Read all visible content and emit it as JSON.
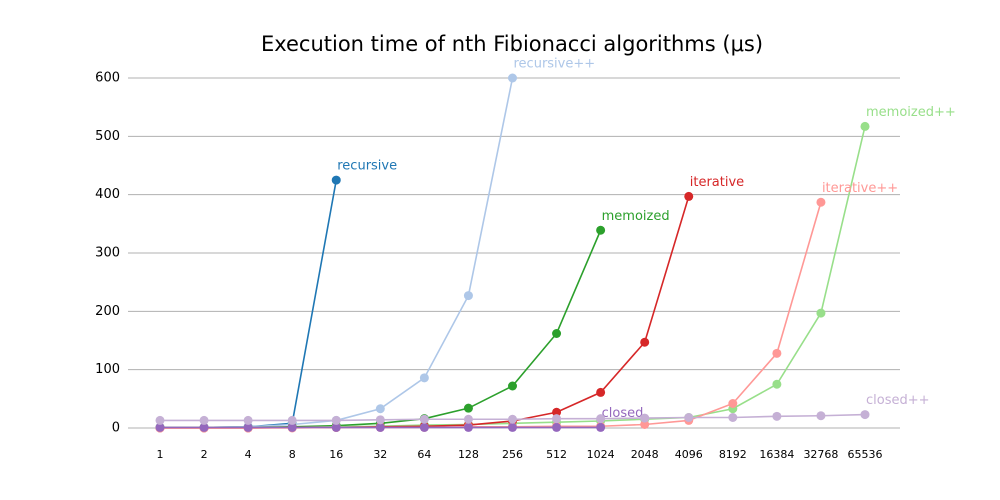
{
  "chart_data": {
    "type": "line",
    "title": "Execution time of nth Fibionacci algorithms (μs)",
    "categories": [
      "1",
      "2",
      "4",
      "8",
      "16",
      "32",
      "64",
      "128",
      "256",
      "512",
      "1024",
      "2048",
      "4096",
      "8192",
      "16384",
      "32768",
      "65536"
    ],
    "ylim": [
      0,
      600
    ],
    "yticks": [
      0,
      100,
      200,
      300,
      400,
      500,
      600
    ],
    "grid": true,
    "series": [
      {
        "name": "recursive",
        "color": "#1f77b4",
        "values": [
          1,
          1,
          2,
          8,
          425,
          null,
          null,
          null,
          null,
          null,
          null,
          null,
          null,
          null,
          null,
          null,
          null
        ]
      },
      {
        "name": "recursive++",
        "color": "#aec7e8",
        "values": [
          1,
          1,
          2,
          6,
          13,
          33,
          86,
          227,
          600,
          null,
          null,
          null,
          null,
          null,
          null,
          null,
          null
        ]
      },
      {
        "name": "memoized",
        "color": "#2ca02c",
        "values": [
          1,
          1,
          1,
          2,
          4,
          8,
          16,
          34,
          72,
          162,
          339,
          null,
          null,
          null,
          null,
          null,
          null
        ]
      },
      {
        "name": "memoized++",
        "color": "#98df8a",
        "values": [
          1,
          1,
          1,
          1,
          2,
          3,
          5,
          6,
          8,
          10,
          12,
          15,
          18,
          33,
          75,
          197,
          517
        ]
      },
      {
        "name": "iterative",
        "color": "#d62728",
        "values": [
          0,
          0,
          0,
          1,
          1,
          2,
          3,
          5,
          12,
          27,
          61,
          147,
          397,
          null,
          null,
          null,
          null
        ]
      },
      {
        "name": "iterative++",
        "color": "#ff9896",
        "values": [
          0,
          0,
          0,
          0,
          1,
          1,
          1,
          2,
          2,
          3,
          3,
          6,
          13,
          42,
          128,
          387,
          null
        ]
      },
      {
        "name": "closed",
        "color": "#9467bd",
        "values": [
          1,
          1,
          1,
          1,
          1,
          1,
          1,
          1,
          1,
          1,
          1,
          null,
          null,
          null,
          null,
          null,
          null
        ]
      },
      {
        "name": "closed++",
        "color": "#c5b0d5",
        "values": [
          13,
          13,
          13,
          13,
          13,
          14,
          15,
          15,
          15,
          16,
          16,
          17,
          18,
          18,
          20,
          21,
          23
        ]
      }
    ]
  }
}
